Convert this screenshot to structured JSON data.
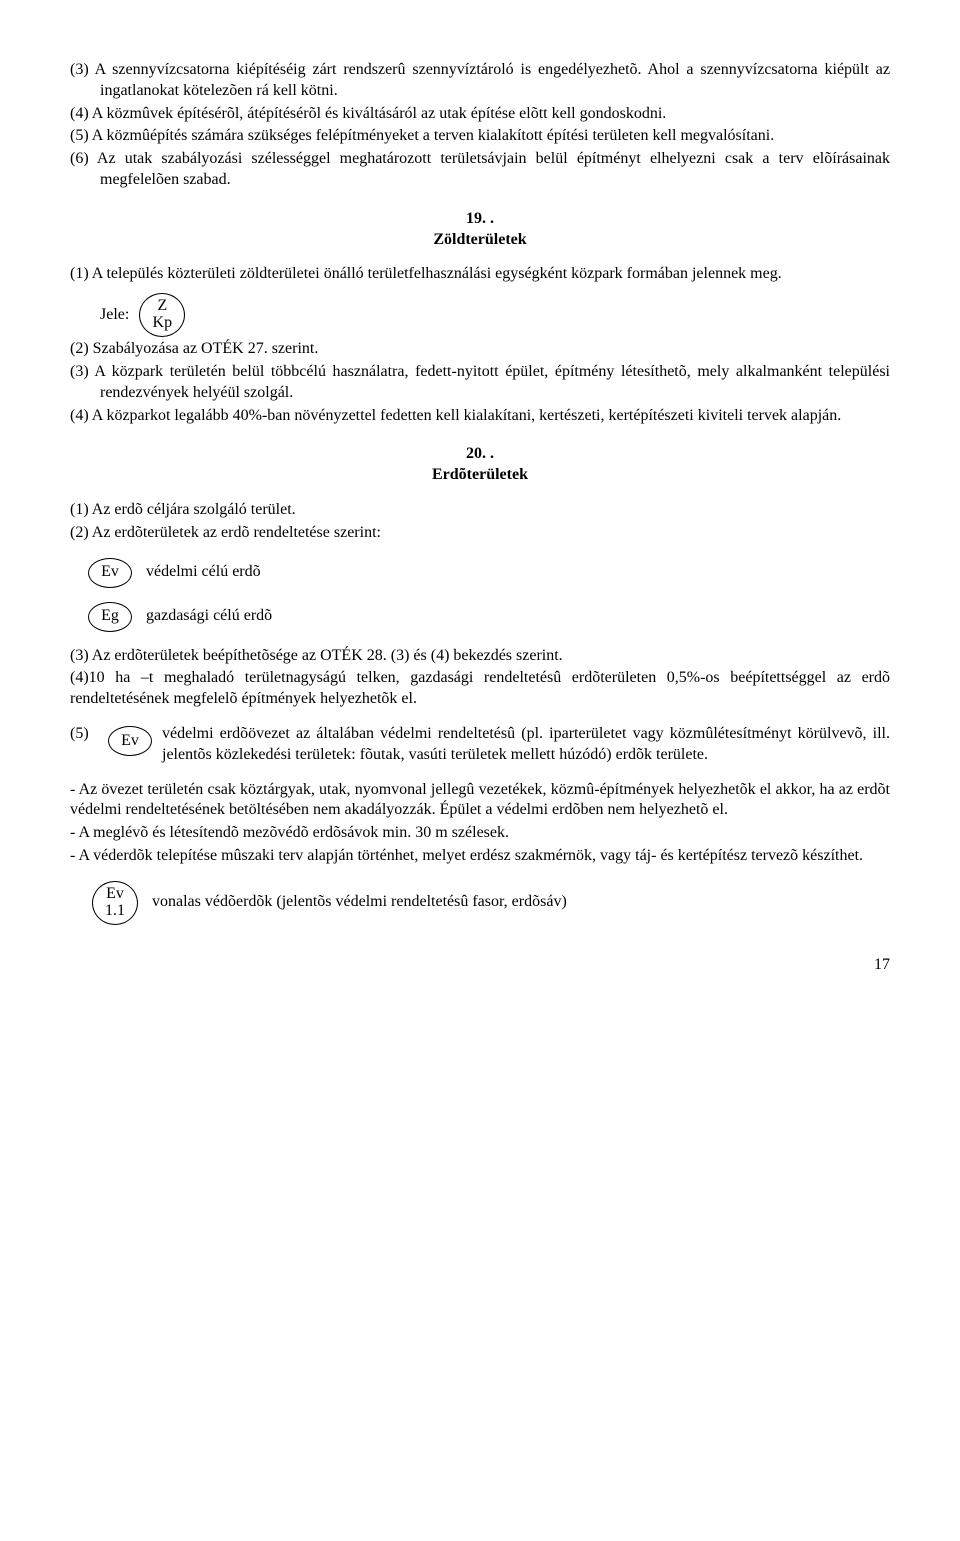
{
  "top": {
    "p3": "(3) A szennyvízcsatorna kiépítéséig zárt rendszerû szennyvíztároló is engedélyezhetõ. Ahol a szennyvízcsatorna kiépült az ingatlanokat kötelezõen rá kell kötni.",
    "p4": "(4) A közmûvek építésérõl, átépítésérõl és kiváltásáról az utak építése elõtt kell gondoskodni.",
    "p5": "(5) A közmûépítés számára szükséges felépítményeket a terven kialakított építési területen kell megvalósítani.",
    "p6": "(6) Az utak szabályozási szélességgel meghatározott területsávjain belül építményt elhelyezni csak a terv elõírásainak megfelelõen szabad."
  },
  "sec19": {
    "num": "19. .",
    "title": "Zöldterületek",
    "p1": "(1) A település közterületi zöldterületei önálló területfelhasználási egységként közpark formában jelennek meg.",
    "jele_label": "Jele:",
    "oval_top": "Z",
    "oval_bot": "Kp",
    "p2": "(2) Szabályozása az OTÉK 27. szerint.",
    "p3": "(3) A közpark területén belül többcélú használatra, fedett-nyitott épület, építmény létesíthetõ, mely alkalmanként települési rendezvények helyéül szolgál.",
    "p4": "(4) A közparkot legalább 40%-ban növényzettel fedetten kell kialakítani, kertészeti, kertépítészeti kiviteli tervek alapján."
  },
  "sec20": {
    "num": "20. .",
    "title": "Erdõterületek",
    "p1": "(1) Az erdõ céljára szolgáló terület.",
    "p2": "(2) Az erdõterületek az erdõ rendeltetése szerint:",
    "ev_code": "Ev",
    "ev_label": "védelmi célú erdõ",
    "eg_code": "Eg",
    "eg_label": "gazdasági célú erdõ",
    "p3": "(3) Az erdõterületek beépíthetõsége az OTÉK 28. (3) és (4) bekezdés szerint.",
    "p4": "(4)10 ha –t meghaladó területnagyságú telken, gazdasági rendeltetésû erdõterületen 0,5%-os beépítettséggel az erdõ rendeltetésének megfelelõ építmények helyezhetõk el.",
    "p5_num": "(5)",
    "p5_code": "Ev",
    "p5_text": "védelmi erdõövezet az általában védelmi rendeltetésû (pl. iparterületet vagy közmûlétesítményt körülvevõ, ill. jelentõs közlekedési területek: fõutak, vasúti területek mellett húzódó) erdõk területe.",
    "dash1": "- Az övezet területén csak köztárgyak, utak, nyomvonal jellegû vezetékek, közmû-építmények helyezhetõk el akkor, ha az erdõt védelmi rendeltetésének betöltésében nem akadályozzák. Épület a védelmi erdõben nem helyezhetõ el.",
    "dash2": "- A meglévõ és létesítendõ mezõvédõ erdõsávok min. 30 m szélesek.",
    "dash3": "- A véderdõk telepítése mûszaki terv alapján történhet, melyet erdész szakmérnök, vagy táj- és kertépítész tervezõ készíthet.",
    "ev11_top": "Ev",
    "ev11_bot": "1.1",
    "ev11_label": "vonalas védõerdõk  (jelentõs védelmi rendeltetésû fasor, erdõsáv)"
  },
  "page_number": "17"
}
